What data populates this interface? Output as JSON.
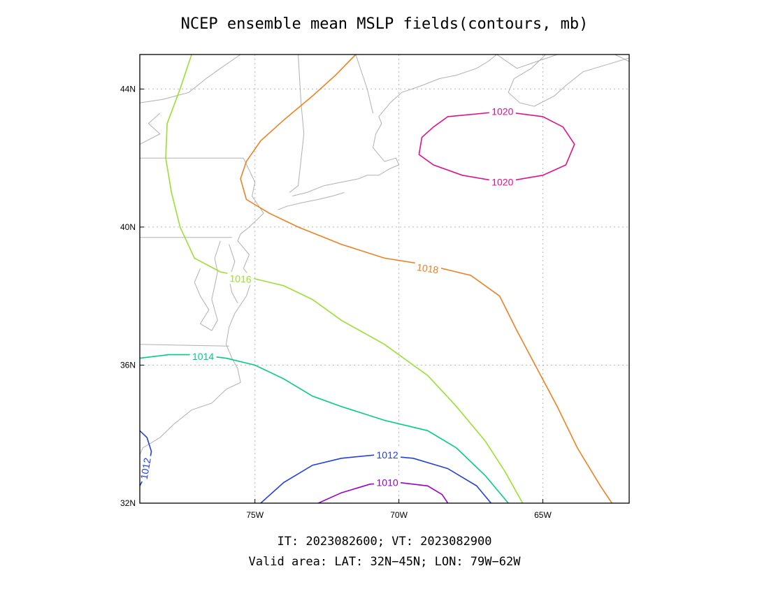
{
  "figure": {
    "title": "NCEP ensemble mean MSLP fields(contours, mb)",
    "footer_line1": "IT: 2023082600; VT: 2023082900",
    "footer_line2": "Valid area: LAT: 32N−45N; LON: 79W−62W"
  },
  "chart_data": {
    "type": "contour",
    "title": "NCEP ensemble mean MSLP fields(contours, mb)",
    "xlabel": "",
    "ylabel": "",
    "xlim": [
      -79,
      -62
    ],
    "ylim": [
      32,
      45
    ],
    "grid": true,
    "x_ticks": [
      {
        "value": -75,
        "label": "75W"
      },
      {
        "value": -70,
        "label": "70W"
      },
      {
        "value": -65,
        "label": "65W"
      }
    ],
    "y_ticks": [
      {
        "value": 32,
        "label": "32N"
      },
      {
        "value": 36,
        "label": "36N"
      },
      {
        "value": 40,
        "label": "40N"
      },
      {
        "value": 44,
        "label": "44N"
      }
    ],
    "series": [
      {
        "level": 1010,
        "color": "#9900cc",
        "labels": [
          {
            "text": "1010",
            "lon": -70.4,
            "lat": 32.6
          }
        ],
        "points": [
          [
            -72.8,
            32
          ],
          [
            -72.0,
            32.3
          ],
          [
            -71.0,
            32.55
          ],
          [
            -70.0,
            32.6
          ],
          [
            -69.0,
            32.5
          ],
          [
            -68.5,
            32.25
          ],
          [
            -68.3,
            32
          ]
        ]
      },
      {
        "level": 1012,
        "color": "#2040e0",
        "labels": [
          {
            "text": "1012",
            "lon": -70.4,
            "lat": 33.4
          },
          {
            "text": "1012",
            "lon": -78.8,
            "lat": 33.0,
            "rotate": -80
          }
        ],
        "points": [
          [
            -74.8,
            32
          ],
          [
            -74.0,
            32.6
          ],
          [
            -73.0,
            33.1
          ],
          [
            -72.0,
            33.3
          ],
          [
            -70.8,
            33.4
          ],
          [
            -69.5,
            33.3
          ],
          [
            -68.3,
            33.0
          ],
          [
            -67.3,
            32.5
          ],
          [
            -66.8,
            32
          ]
        ]
      },
      {
        "level": 1012,
        "color": "#2040e0",
        "labels": [],
        "points": [
          [
            -79.0,
            34.1
          ],
          [
            -78.75,
            33.9
          ],
          [
            -78.6,
            33.5
          ],
          [
            -78.7,
            33.0
          ],
          [
            -79.0,
            32.5
          ]
        ]
      },
      {
        "level": 1014,
        "color": "#00cc88",
        "labels": [
          {
            "text": "1014",
            "lon": -76.8,
            "lat": 36.25
          }
        ],
        "points": [
          [
            -79.0,
            36.2
          ],
          [
            -78.0,
            36.3
          ],
          [
            -77.0,
            36.3
          ],
          [
            -76.0,
            36.2
          ],
          [
            -75.0,
            36.0
          ],
          [
            -74.0,
            35.6
          ],
          [
            -73.0,
            35.1
          ],
          [
            -72.0,
            34.8
          ],
          [
            -70.5,
            34.4
          ],
          [
            -69.0,
            34.1
          ],
          [
            -68.0,
            33.6
          ],
          [
            -67.0,
            32.8
          ],
          [
            -66.2,
            32
          ]
        ]
      },
      {
        "level": 1016,
        "color": "#99e030",
        "labels": [
          {
            "text": "1016",
            "lon": -75.5,
            "lat": 38.5,
            "rotate": 3
          }
        ],
        "points": [
          [
            -77.2,
            45
          ],
          [
            -77.6,
            44.0
          ],
          [
            -78.05,
            43.0
          ],
          [
            -78.1,
            42.0
          ],
          [
            -77.9,
            41.0
          ],
          [
            -77.6,
            40.0
          ],
          [
            -77.1,
            39.1
          ],
          [
            -76.2,
            38.7
          ],
          [
            -75.0,
            38.5
          ],
          [
            -74.0,
            38.3
          ],
          [
            -73.0,
            37.9
          ],
          [
            -72.0,
            37.3
          ],
          [
            -70.5,
            36.6
          ],
          [
            -69.0,
            35.7
          ],
          [
            -68.0,
            34.8
          ],
          [
            -67.0,
            33.8
          ],
          [
            -66.3,
            32.9
          ],
          [
            -65.7,
            32
          ]
        ]
      },
      {
        "level": 1018,
        "color": "#ee8020",
        "labels": [
          {
            "text": "1018",
            "lon": -69.0,
            "lat": 38.8,
            "rotate": 8
          }
        ],
        "points": [
          [
            -71.5,
            45
          ],
          [
            -72.2,
            44.4
          ],
          [
            -73.0,
            43.8
          ],
          [
            -74.0,
            43.1
          ],
          [
            -74.8,
            42.5
          ],
          [
            -75.3,
            41.9
          ],
          [
            -75.5,
            41.4
          ],
          [
            -75.3,
            40.8
          ],
          [
            -74.5,
            40.4
          ],
          [
            -73.5,
            40.0
          ],
          [
            -72.0,
            39.5
          ],
          [
            -70.5,
            39.1
          ],
          [
            -69.0,
            38.9
          ],
          [
            -67.5,
            38.6
          ],
          [
            -66.5,
            38.0
          ],
          [
            -65.9,
            37.0
          ],
          [
            -65.2,
            35.9
          ],
          [
            -64.5,
            34.8
          ],
          [
            -63.8,
            33.6
          ],
          [
            -63.0,
            32.5
          ],
          [
            -62.6,
            32
          ]
        ]
      },
      {
        "level": 1020,
        "color": "#e0108c",
        "labels": [
          {
            "text": "1020",
            "lon": -66.4,
            "lat": 43.35
          },
          {
            "text": "1020",
            "lon": -66.4,
            "lat": 41.3
          }
        ],
        "closed": true,
        "points": [
          [
            -68.3,
            43.2
          ],
          [
            -66.4,
            43.35
          ],
          [
            -65.0,
            43.2
          ],
          [
            -64.3,
            42.9
          ],
          [
            -63.9,
            42.4
          ],
          [
            -64.2,
            41.8
          ],
          [
            -65.0,
            41.5
          ],
          [
            -66.4,
            41.3
          ],
          [
            -67.8,
            41.5
          ],
          [
            -68.8,
            41.8
          ],
          [
            -69.3,
            42.1
          ],
          [
            -69.2,
            42.6
          ],
          [
            -68.8,
            42.9
          ]
        ]
      }
    ]
  },
  "coast": [
    [
      [
        -79,
        43.6
      ],
      [
        -78.2,
        43.7
      ],
      [
        -77.3,
        43.9
      ],
      [
        -76.7,
        44.3
      ],
      [
        -76.2,
        44.6
      ],
      [
        -75.5,
        45.0
      ]
    ],
    [
      [
        -79,
        42.4
      ],
      [
        -78.3,
        42.7
      ],
      [
        -78.7,
        43.0
      ],
      [
        -78.3,
        43.3
      ]
    ],
    [
      [
        -79,
        42.0
      ],
      [
        -75.4,
        42.0
      ]
    ],
    [
      [
        -79,
        39.7
      ],
      [
        -75.8,
        39.7
      ]
    ],
    [
      [
        -79,
        36.6
      ],
      [
        -75.9,
        36.55
      ]
    ],
    [
      [
        -73.5,
        45
      ],
      [
        -73.4,
        43.6
      ],
      [
        -73.3,
        42.7
      ],
      [
        -73.5,
        41.2
      ],
      [
        -73.8,
        41.0
      ]
    ],
    [
      [
        -71.5,
        45
      ],
      [
        -71.1,
        44.0
      ],
      [
        -70.9,
        43.3
      ]
    ],
    [
      [
        -75.4,
        42.0
      ],
      [
        -75.0,
        41.3
      ],
      [
        -75.1,
        40.9
      ],
      [
        -74.7,
        40.4
      ],
      [
        -75.2,
        40.0
      ],
      [
        -75.5,
        39.8
      ],
      [
        -75.6,
        39.6
      ],
      [
        -75.2,
        39.2
      ],
      [
        -75.4,
        38.8
      ],
      [
        -75.1,
        38.5
      ],
      [
        -75.3,
        38.0
      ],
      [
        -75.7,
        37.5
      ],
      [
        -75.9,
        37.1
      ],
      [
        -76.0,
        36.6
      ],
      [
        -75.8,
        36.2
      ],
      [
        -75.6,
        35.9
      ],
      [
        -75.5,
        35.5
      ],
      [
        -76.0,
        35.3
      ],
      [
        -76.5,
        34.9
      ],
      [
        -77.2,
        34.7
      ],
      [
        -77.8,
        34.3
      ],
      [
        -78.3,
        33.9
      ],
      [
        -78.9,
        33.6
      ],
      [
        -79.0,
        33.4
      ]
    ],
    [
      [
        -76.2,
        39.6
      ],
      [
        -76.4,
        39.1
      ],
      [
        -76.3,
        38.7
      ],
      [
        -76.4,
        38.3
      ],
      [
        -76.5,
        37.9
      ],
      [
        -76.3,
        37.3
      ],
      [
        -76.5,
        37.0
      ],
      [
        -76.9,
        37.2
      ],
      [
        -76.6,
        37.6
      ],
      [
        -76.9,
        38.0
      ],
      [
        -77.1,
        38.4
      ],
      [
        -76.9,
        38.8
      ]
    ],
    [
      [
        -75.9,
        39.5
      ],
      [
        -75.7,
        39.0
      ],
      [
        -75.9,
        38.5
      ],
      [
        -75.8,
        38.1
      ],
      [
        -75.6,
        37.8
      ]
    ],
    [
      [
        -74.2,
        40.5
      ],
      [
        -73.9,
        40.6
      ],
      [
        -73.4,
        40.7
      ],
      [
        -72.8,
        40.8
      ],
      [
        -72.3,
        40.9
      ],
      [
        -71.9,
        41.0
      ]
    ],
    [
      [
        -73.7,
        40.9
      ],
      [
        -73.2,
        41.0
      ],
      [
        -72.6,
        41.2
      ],
      [
        -72.0,
        41.3
      ],
      [
        -71.4,
        41.4
      ],
      [
        -71.1,
        41.5
      ],
      [
        -70.7,
        41.5
      ],
      [
        -70.3,
        41.7
      ],
      [
        -70.0,
        41.8
      ],
      [
        -70.1,
        42.0
      ],
      [
        -70.5,
        41.9
      ],
      [
        -70.9,
        42.3
      ],
      [
        -70.8,
        42.7
      ],
      [
        -70.6,
        43.0
      ],
      [
        -70.7,
        43.2
      ],
      [
        -70.3,
        43.6
      ],
      [
        -69.9,
        43.9
      ],
      [
        -69.2,
        44.1
      ],
      [
        -68.6,
        44.3
      ],
      [
        -68.0,
        44.4
      ],
      [
        -67.3,
        44.6
      ],
      [
        -66.9,
        44.8
      ],
      [
        -66.6,
        45.0
      ]
    ],
    [
      [
        -64.9,
        45
      ],
      [
        -65.4,
        44.6
      ],
      [
        -66.0,
        44.3
      ],
      [
        -66.2,
        43.9
      ],
      [
        -65.8,
        43.6
      ],
      [
        -65.3,
        43.5
      ],
      [
        -64.6,
        43.8
      ],
      [
        -64.2,
        44.1
      ],
      [
        -63.6,
        44.5
      ],
      [
        -62.8,
        44.7
      ],
      [
        -62.0,
        44.9
      ]
    ],
    [
      [
        -66.6,
        45.0
      ],
      [
        -65.9,
        44.6
      ],
      [
        -65.2,
        44.8
      ],
      [
        -64.5,
        45.0
      ]
    ],
    [
      [
        -62.5,
        45
      ],
      [
        -62.0,
        44.8
      ]
    ]
  ]
}
